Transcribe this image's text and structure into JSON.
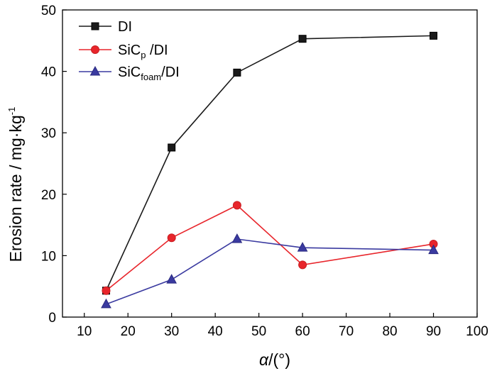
{
  "chart_data": {
    "type": "line",
    "title": "",
    "xlabel": "α/(°)",
    "ylabel": "Erosion rate / mg·kg⁻¹",
    "xlim": [
      5,
      100
    ],
    "ylim": [
      0,
      50
    ],
    "xticks": [
      10,
      20,
      30,
      40,
      50,
      60,
      70,
      80,
      90,
      100
    ],
    "yticks": [
      0,
      10,
      20,
      30,
      40,
      50
    ],
    "grid": false,
    "legend_position": "top-left",
    "x": [
      15,
      30,
      45,
      60,
      90
    ],
    "series": [
      {
        "name": "DI",
        "color": "#1a1a1a",
        "marker": "square",
        "values": [
          4.3,
          27.6,
          39.8,
          45.3,
          45.8
        ]
      },
      {
        "name": "SiCp/DI",
        "color": "#e8252b",
        "marker": "circle",
        "values": [
          4.3,
          12.9,
          18.2,
          8.5,
          11.9
        ]
      },
      {
        "name": "SiCfoam/DI",
        "color": "#3a3aa0",
        "marker": "triangle",
        "values": [
          2.1,
          6.1,
          12.7,
          11.3,
          10.9
        ]
      }
    ]
  },
  "legend": {
    "items": [
      {
        "base": "DI",
        "sub": "",
        "rest": ""
      },
      {
        "base": "SiC",
        "sub": "p",
        "rest": " /DI"
      },
      {
        "base": "SiC",
        "sub": "foam",
        "rest": "/DI"
      }
    ]
  },
  "labels": {
    "x_title_italic": "α",
    "x_title_rest": "/(°)",
    "y_title_main": "Erosion rate / mg·kg",
    "y_title_sup": "-1"
  }
}
